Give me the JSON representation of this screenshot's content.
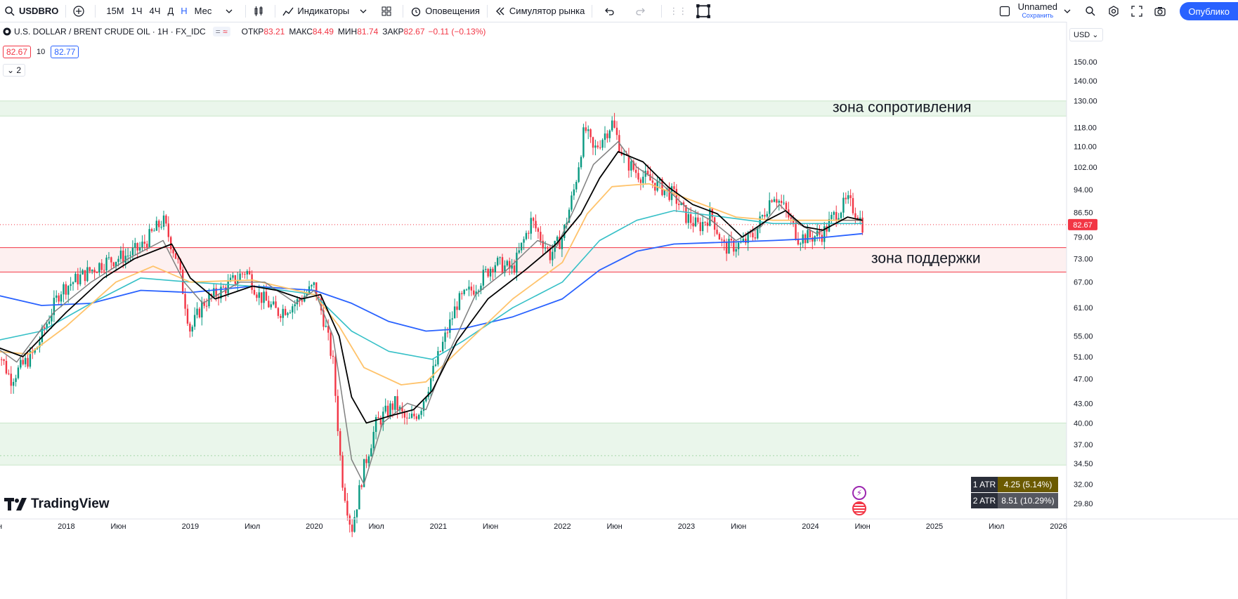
{
  "toolbar": {
    "symbol": "USDBRO",
    "intervals": [
      "15М",
      "1Ч",
      "4Ч",
      "Д",
      "Н",
      "Мес"
    ],
    "active_interval": "Н",
    "indicators_label": "Индикаторы",
    "alerts_label": "Оповещения",
    "replay_label": "Симулятор рынка",
    "layout_name": "Unnamed",
    "layout_saved": "Сохранить",
    "publish_label": "Опублико"
  },
  "legend": {
    "title": "U.S. DOLLAR / BRENT CRUDE OIL · 1H · FX_IDC",
    "open_label": "ОТКР",
    "open": "83.21",
    "high_label": "МАКС",
    "high": "84.49",
    "low_label": "МИН",
    "low": "81.74",
    "close_label": "ЗАКР",
    "close": "82.67",
    "change": "−0.11 (−0.13%)",
    "bid": "82.67",
    "spread": "10",
    "ask": "82.77",
    "collapsed_count": "2"
  },
  "currency": "USD",
  "price_tag": "82.67",
  "watermark": "TradingView",
  "atr": [
    {
      "label": "1 ATR",
      "value": "4.25 (5.14%)",
      "color": "#6b5a00"
    },
    {
      "label": "2 ATR",
      "value": "8.51 (10.29%)",
      "color": "#55575f"
    }
  ],
  "colors": {
    "up": "#089981",
    "down": "#f23645",
    "ma_black": "#000000",
    "ma_gray": "#808080",
    "ma_orange": "#ffc36b",
    "ma_teal": "#36c0c7",
    "ma_blue": "#2962ff"
  },
  "chart_data": {
    "type": "candlestick",
    "y_scale": "log",
    "ylim": [
      28.5,
      160
    ],
    "y_ticks": [
      150,
      140,
      130,
      118,
      110,
      102,
      94,
      86.5,
      79,
      73,
      67,
      61,
      55,
      51,
      47,
      43,
      40,
      37,
      34.5,
      32,
      29.8
    ],
    "y_tick_labels": [
      "150.00",
      "140.00",
      "130.00",
      "118.00",
      "110.00",
      "102.00",
      "94.00",
      "86.50",
      "79.00",
      "73.00",
      "67.00",
      "61.00",
      "55.00",
      "51.00",
      "47.00",
      "43.00",
      "40.00",
      "37.00",
      "34.50",
      "32.00",
      "29.80"
    ],
    "x_labels": [
      "Июн",
      "2018",
      "Июн",
      "2019",
      "Июл",
      "2020",
      "Июл",
      "2021",
      "Июн",
      "2022",
      "Июн",
      "2023",
      "Июн",
      "2024",
      "Июн",
      "2025",
      "Июл",
      "2026"
    ],
    "x_label_dates": [
      2017.42,
      2018.0,
      2018.42,
      2019.0,
      2019.5,
      2020.0,
      2020.5,
      2021.0,
      2021.42,
      2022.0,
      2022.42,
      2023.0,
      2023.42,
      2024.0,
      2024.42,
      2025.0,
      2025.5,
      2026.0
    ],
    "x_range": [
      2017.42,
      2026.02
    ],
    "last_price": 82.67,
    "zones": [
      {
        "label": "зона сопротивления",
        "low": 123,
        "high": 130,
        "color": "#e8f5e9"
      },
      {
        "label": "зона поддержки",
        "low": 69.5,
        "high": 76,
        "color": "#fdeeee"
      },
      {
        "label": "",
        "low": 34.3,
        "high": 40,
        "color": "#e8f5e9"
      }
    ],
    "close_path": [
      [
        2017.42,
        54
      ],
      [
        2017.55,
        47
      ],
      [
        2017.75,
        52
      ],
      [
        2017.95,
        65
      ],
      [
        2018.1,
        68
      ],
      [
        2018.3,
        72
      ],
      [
        2018.5,
        74
      ],
      [
        2018.6,
        76
      ],
      [
        2018.78,
        84
      ],
      [
        2018.9,
        72
      ],
      [
        2019.0,
        56
      ],
      [
        2019.1,
        62
      ],
      [
        2019.3,
        66
      ],
      [
        2019.45,
        70
      ],
      [
        2019.55,
        64
      ],
      [
        2019.7,
        60
      ],
      [
        2019.85,
        62
      ],
      [
        2020.0,
        66
      ],
      [
        2020.08,
        58
      ],
      [
        2020.15,
        50
      ],
      [
        2020.22,
        33
      ],
      [
        2020.3,
        27
      ],
      [
        2020.4,
        34
      ],
      [
        2020.5,
        40
      ],
      [
        2020.65,
        43
      ],
      [
        2020.75,
        40
      ],
      [
        2020.85,
        42
      ],
      [
        2021.0,
        51
      ],
      [
        2021.15,
        62
      ],
      [
        2021.3,
        66
      ],
      [
        2021.45,
        72
      ],
      [
        2021.6,
        70
      ],
      [
        2021.75,
        84
      ],
      [
        2021.9,
        74
      ],
      [
        2022.0,
        79
      ],
      [
        2022.1,
        95
      ],
      [
        2022.18,
        118
      ],
      [
        2022.25,
        108
      ],
      [
        2022.4,
        120
      ],
      [
        2022.5,
        105
      ],
      [
        2022.6,
        100
      ],
      [
        2022.75,
        96
      ],
      [
        2022.9,
        92
      ],
      [
        2023.0,
        85
      ],
      [
        2023.1,
        82
      ],
      [
        2023.2,
        86
      ],
      [
        2023.3,
        76
      ],
      [
        2023.45,
        77
      ],
      [
        2023.55,
        80
      ],
      [
        2023.7,
        93
      ],
      [
        2023.8,
        87
      ],
      [
        2023.9,
        79
      ],
      [
        2024.0,
        79
      ],
      [
        2024.1,
        80
      ],
      [
        2024.2,
        86
      ],
      [
        2024.3,
        90
      ],
      [
        2024.38,
        86
      ],
      [
        2024.42,
        82.67
      ]
    ],
    "series": [
      {
        "color": "#2962ff",
        "width": 1.8,
        "points": [
          [
            2017.42,
            64
          ],
          [
            2017.8,
            61.5
          ],
          [
            2018.2,
            62
          ],
          [
            2018.6,
            65
          ],
          [
            2019.0,
            64.5
          ],
          [
            2019.5,
            66
          ],
          [
            2020.0,
            65
          ],
          [
            2020.3,
            62
          ],
          [
            2020.6,
            58
          ],
          [
            2020.9,
            56
          ],
          [
            2021.2,
            56.5
          ],
          [
            2021.6,
            59
          ],
          [
            2022.0,
            63
          ],
          [
            2022.3,
            70
          ],
          [
            2022.6,
            75
          ],
          [
            2022.9,
            77
          ],
          [
            2023.3,
            77.5
          ],
          [
            2023.7,
            78
          ],
          [
            2024.0,
            78.5
          ],
          [
            2024.42,
            80
          ]
        ]
      },
      {
        "color": "#36c0c7",
        "width": 1.6,
        "points": [
          [
            2017.42,
            54
          ],
          [
            2017.8,
            56
          ],
          [
            2018.2,
            62
          ],
          [
            2018.6,
            68
          ],
          [
            2019.0,
            67
          ],
          [
            2019.5,
            66
          ],
          [
            2020.0,
            64
          ],
          [
            2020.3,
            56
          ],
          [
            2020.6,
            52
          ],
          [
            2020.95,
            50.5
          ],
          [
            2021.2,
            54
          ],
          [
            2021.6,
            61
          ],
          [
            2022.0,
            67
          ],
          [
            2022.3,
            78
          ],
          [
            2022.6,
            84
          ],
          [
            2022.9,
            87
          ],
          [
            2023.3,
            85
          ],
          [
            2023.7,
            83
          ],
          [
            2024.0,
            83
          ],
          [
            2024.42,
            83
          ]
        ]
      },
      {
        "color": "#ffc36b",
        "width": 1.8,
        "points": [
          [
            2017.42,
            52
          ],
          [
            2017.7,
            51.5
          ],
          [
            2018.0,
            57
          ],
          [
            2018.4,
            67
          ],
          [
            2018.7,
            71
          ],
          [
            2019.0,
            67
          ],
          [
            2019.5,
            67.5
          ],
          [
            2020.0,
            64
          ],
          [
            2020.2,
            57
          ],
          [
            2020.4,
            49
          ],
          [
            2020.7,
            46
          ],
          [
            2020.9,
            46.5
          ],
          [
            2021.2,
            53
          ],
          [
            2021.6,
            63
          ],
          [
            2022.0,
            72
          ],
          [
            2022.2,
            86
          ],
          [
            2022.4,
            95
          ],
          [
            2022.7,
            96
          ],
          [
            2023.0,
            91
          ],
          [
            2023.4,
            85
          ],
          [
            2023.7,
            84
          ],
          [
            2024.0,
            84
          ],
          [
            2024.42,
            84
          ]
        ]
      },
      {
        "color": "#808080",
        "width": 1.5,
        "points": [
          [
            2017.42,
            53
          ],
          [
            2017.6,
            50
          ],
          [
            2017.9,
            60
          ],
          [
            2018.2,
            67
          ],
          [
            2018.5,
            73
          ],
          [
            2018.78,
            78
          ],
          [
            2018.95,
            67
          ],
          [
            2019.1,
            62
          ],
          [
            2019.4,
            67
          ],
          [
            2019.6,
            67
          ],
          [
            2019.85,
            62
          ],
          [
            2020.0,
            65
          ],
          [
            2020.15,
            55
          ],
          [
            2020.3,
            35
          ],
          [
            2020.4,
            32
          ],
          [
            2020.55,
            40
          ],
          [
            2020.75,
            43
          ],
          [
            2020.9,
            42
          ],
          [
            2021.05,
            50
          ],
          [
            2021.3,
            64
          ],
          [
            2021.55,
            70
          ],
          [
            2021.8,
            78
          ],
          [
            2021.95,
            76
          ],
          [
            2022.1,
            88
          ],
          [
            2022.25,
            103
          ],
          [
            2022.45,
            112
          ],
          [
            2022.6,
            102
          ],
          [
            2022.8,
            96
          ],
          [
            2023.0,
            88
          ],
          [
            2023.2,
            84
          ],
          [
            2023.4,
            78
          ],
          [
            2023.6,
            82
          ],
          [
            2023.75,
            89
          ],
          [
            2023.9,
            83
          ],
          [
            2024.05,
            80
          ],
          [
            2024.25,
            84
          ],
          [
            2024.42,
            84
          ]
        ]
      },
      {
        "color": "#000000",
        "width": 1.8,
        "points": [
          [
            2017.42,
            53
          ],
          [
            2017.65,
            51
          ],
          [
            2018.0,
            60
          ],
          [
            2018.3,
            68
          ],
          [
            2018.55,
            73
          ],
          [
            2018.85,
            77
          ],
          [
            2019.0,
            68
          ],
          [
            2019.2,
            63
          ],
          [
            2019.5,
            66
          ],
          [
            2019.7,
            65
          ],
          [
            2019.9,
            63
          ],
          [
            2020.05,
            64
          ],
          [
            2020.2,
            55
          ],
          [
            2020.3,
            44
          ],
          [
            2020.42,
            40
          ],
          [
            2020.6,
            41
          ],
          [
            2020.8,
            42
          ],
          [
            2020.95,
            45
          ],
          [
            2021.15,
            54
          ],
          [
            2021.4,
            63
          ],
          [
            2021.7,
            70
          ],
          [
            2021.95,
            77
          ],
          [
            2022.15,
            86
          ],
          [
            2022.3,
            98
          ],
          [
            2022.45,
            108
          ],
          [
            2022.65,
            104
          ],
          [
            2022.85,
            95
          ],
          [
            2023.05,
            89
          ],
          [
            2023.25,
            86
          ],
          [
            2023.45,
            79
          ],
          [
            2023.65,
            84
          ],
          [
            2023.8,
            87
          ],
          [
            2023.95,
            82
          ],
          [
            2024.1,
            81
          ],
          [
            2024.3,
            85
          ],
          [
            2024.42,
            84
          ]
        ]
      }
    ]
  }
}
